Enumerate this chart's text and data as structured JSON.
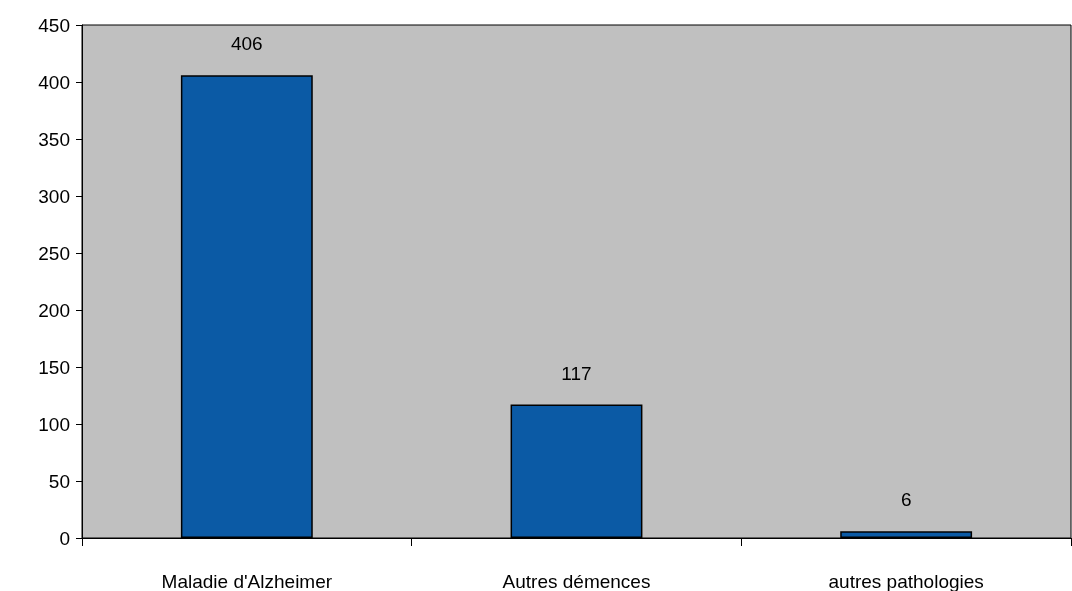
{
  "chart_data": {
    "type": "bar",
    "categories": [
      "Maladie d'Alzheimer",
      "Autres démences",
      "autres pathologies"
    ],
    "values": [
      406,
      117,
      6
    ],
    "color": "#0b5aa5",
    "ylim": [
      0,
      450
    ],
    "yticks": [
      0,
      50,
      100,
      150,
      200,
      250,
      300,
      350,
      400,
      450
    ],
    "grid": false,
    "data_labels": true
  }
}
